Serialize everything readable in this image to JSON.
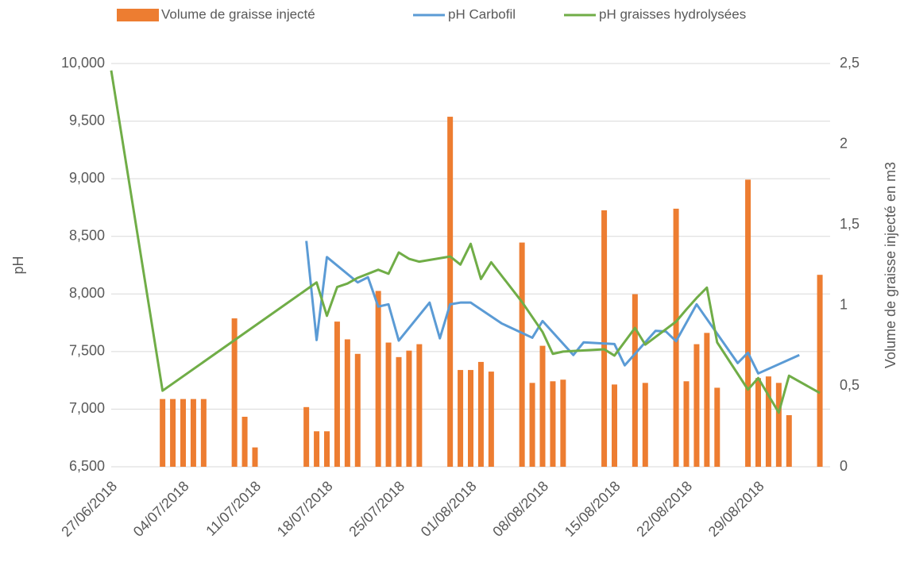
{
  "chart_data": {
    "type": "combo",
    "y_label": "pH",
    "y2_label": "Volume de graisse injecté en m3",
    "xlim": [
      "27/06/2018",
      "05/09/2018"
    ],
    "xticks": [
      "27/06/2018",
      "04/07/2018",
      "11/07/2018",
      "18/07/2018",
      "25/07/2018",
      "01/08/2018",
      "08/08/2018",
      "15/08/2018",
      "22/08/2018",
      "29/08/2018"
    ],
    "ylim": [
      6500,
      10000
    ],
    "yticks": [
      {
        "value": 6500,
        "label": "6,500"
      },
      {
        "value": 7000,
        "label": "7,000"
      },
      {
        "value": 7500,
        "label": "7,500"
      },
      {
        "value": 8000,
        "label": "8,000"
      },
      {
        "value": 8500,
        "label": "8,500"
      },
      {
        "value": 9000,
        "label": "9,000"
      },
      {
        "value": 9500,
        "label": "9,500"
      },
      {
        "value": 10000,
        "label": "10,000"
      }
    ],
    "y2lim": [
      0,
      2.5
    ],
    "y2ticks": [
      0,
      {
        "value": 0.5,
        "label": "0,5"
      },
      1,
      {
        "value": 1.5,
        "label": "1,5"
      },
      2,
      {
        "value": 2.5,
        "label": "2,5"
      }
    ],
    "grid": true,
    "legend": "top",
    "series": [
      {
        "name": "Volume de graisse injecté",
        "type": "bar",
        "axis": "y2",
        "color": "#ed7d31",
        "x": [
          "02/07/2018",
          "03/07/2018",
          "04/07/2018",
          "05/07/2018",
          "06/07/2018",
          "09/07/2018",
          "10/07/2018",
          "11/07/2018",
          "16/07/2018",
          "17/07/2018",
          "18/07/2018",
          "19/07/2018",
          "20/07/2018",
          "21/07/2018",
          "23/07/2018",
          "24/07/2018",
          "25/07/2018",
          "26/07/2018",
          "27/07/2018",
          "30/07/2018",
          "31/07/2018",
          "01/08/2018",
          "02/08/2018",
          "03/08/2018",
          "06/08/2018",
          "07/08/2018",
          "08/08/2018",
          "09/08/2018",
          "10/08/2018",
          "14/08/2018",
          "15/08/2018",
          "17/08/2018",
          "18/08/2018",
          "21/08/2018",
          "22/08/2018",
          "23/08/2018",
          "24/08/2018",
          "25/08/2018",
          "28/08/2018",
          "29/08/2018",
          "30/08/2018",
          "31/08/2018",
          "01/09/2018",
          "04/09/2018"
        ],
        "values": [
          0.42,
          0.42,
          0.42,
          0.42,
          0.42,
          0.92,
          0.31,
          0.12,
          0.37,
          0.22,
          0.22,
          0.9,
          0.79,
          0.7,
          1.09,
          0.77,
          0.68,
          0.72,
          0.76,
          2.17,
          0.6,
          0.6,
          0.65,
          0.59,
          1.39,
          0.52,
          0.75,
          0.53,
          0.54,
          1.59,
          0.51,
          1.07,
          0.52,
          1.6,
          0.53,
          0.76,
          0.83,
          0.49,
          1.78,
          0.55,
          0.56,
          0.52,
          0.32,
          1.19
        ]
      },
      {
        "name": "pH Carbofil",
        "type": "line",
        "axis": "y",
        "color": "#5b9bd5",
        "x": [
          "16/07/2018",
          "17/07/2018",
          "18/07/2018",
          "21/07/2018",
          "22/07/2018",
          "23/07/2018",
          "24/07/2018",
          "25/07/2018",
          "28/07/2018",
          "29/07/2018",
          "30/07/2018",
          "31/07/2018",
          "01/08/2018",
          "04/08/2018",
          "07/08/2018",
          "08/08/2018",
          "11/08/2018",
          "12/08/2018",
          "15/08/2018",
          "16/08/2018",
          "19/08/2018",
          "20/08/2018",
          "21/08/2018",
          "23/08/2018",
          "27/08/2018",
          "28/08/2018",
          "29/08/2018",
          "02/09/2018"
        ],
        "values": [
          8460,
          7600,
          8320,
          8100,
          8145,
          7890,
          7910,
          7595,
          7925,
          7615,
          7910,
          7925,
          7925,
          7745,
          7620,
          7765,
          7470,
          7580,
          7565,
          7380,
          7680,
          7675,
          7590,
          7910,
          7400,
          7490,
          7310,
          7470
        ]
      },
      {
        "name": "pH graisses hydrolysées",
        "type": "line",
        "axis": "y",
        "color": "#70ad47",
        "x": [
          "27/06/2018",
          "02/07/2018",
          "17/07/2018",
          "18/07/2018",
          "19/07/2018",
          "20/07/2018",
          "21/07/2018",
          "23/07/2018",
          "24/07/2018",
          "25/07/2018",
          "26/07/2018",
          "27/07/2018",
          "30/07/2018",
          "31/07/2018",
          "01/08/2018",
          "02/08/2018",
          "03/08/2018",
          "06/08/2018",
          "08/08/2018",
          "09/08/2018",
          "10/08/2018",
          "14/08/2018",
          "15/08/2018",
          "17/08/2018",
          "18/08/2018",
          "21/08/2018",
          "22/08/2018",
          "23/08/2018",
          "24/08/2018",
          "25/08/2018",
          "28/08/2018",
          "29/08/2018",
          "31/08/2018",
          "01/09/2018",
          "04/09/2018"
        ],
        "values": [
          9940,
          7160,
          8100,
          7810,
          8060,
          8090,
          8140,
          8210,
          8175,
          8360,
          8305,
          8280,
          8325,
          8255,
          8435,
          8130,
          8275,
          7930,
          7670,
          7480,
          7500,
          7520,
          7465,
          7705,
          7560,
          7760,
          7865,
          7965,
          8055,
          7580,
          7170,
          7270,
          6970,
          7290,
          7140
        ]
      }
    ]
  }
}
